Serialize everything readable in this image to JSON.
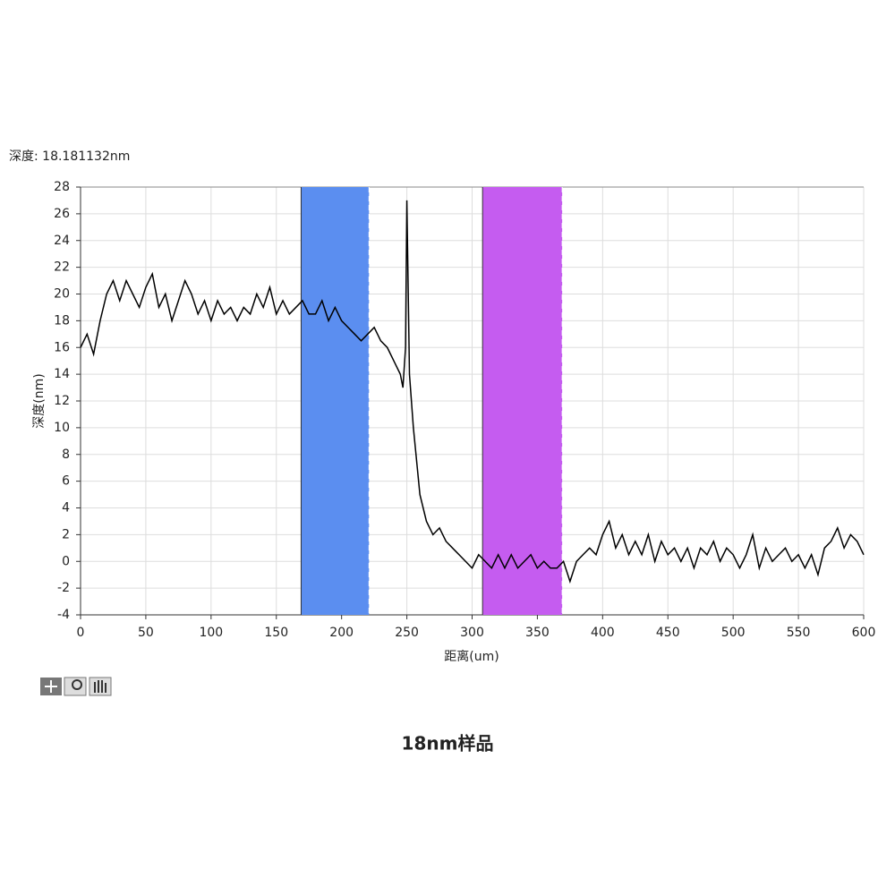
{
  "chart_data": {
    "type": "line",
    "readout": "深度: 18.181132nm",
    "caption": "18nm样品",
    "xlabel": "距离(um)",
    "ylabel": "深度(nm)",
    "xlim": [
      0,
      600
    ],
    "ylim": [
      -4,
      28
    ],
    "xticks": [
      0,
      50,
      100,
      150,
      200,
      250,
      300,
      350,
      400,
      450,
      500,
      550,
      600
    ],
    "yticks": [
      -4,
      -2,
      0,
      2,
      4,
      6,
      8,
      10,
      12,
      14,
      16,
      18,
      20,
      22,
      24,
      26,
      28
    ],
    "grid": true,
    "regions": [
      {
        "x": [
          169,
          221
        ],
        "color": "#5b8ef0"
      },
      {
        "x": [
          308,
          369
        ],
        "color": "#c55cf0"
      }
    ],
    "series": [
      {
        "color": "#000000",
        "x": [
          0,
          5,
          10,
          15,
          20,
          25,
          30,
          35,
          40,
          45,
          50,
          55,
          60,
          65,
          70,
          75,
          80,
          85,
          90,
          95,
          100,
          105,
          110,
          115,
          120,
          125,
          130,
          135,
          140,
          145,
          150,
          155,
          160,
          165,
          170,
          175,
          180,
          185,
          190,
          195,
          200,
          205,
          210,
          215,
          220,
          225,
          230,
          235,
          240,
          245,
          247,
          249,
          250,
          252,
          255,
          258,
          260,
          265,
          270,
          275,
          280,
          285,
          290,
          295,
          300,
          305,
          310,
          315,
          320,
          325,
          330,
          335,
          340,
          345,
          350,
          355,
          360,
          365,
          370,
          375,
          380,
          385,
          390,
          395,
          400,
          405,
          410,
          415,
          420,
          425,
          430,
          435,
          440,
          445,
          450,
          455,
          460,
          465,
          470,
          475,
          480,
          485,
          490,
          495,
          500,
          505,
          510,
          515,
          520,
          525,
          530,
          535,
          540,
          545,
          550,
          555,
          560,
          565,
          570,
          575,
          580,
          585,
          590,
          595,
          600
        ],
        "values": [
          16,
          17,
          15.5,
          18,
          20,
          21,
          19.5,
          21,
          20,
          19,
          20.5,
          21.5,
          19,
          20,
          18,
          19.5,
          21,
          20,
          18.5,
          19.5,
          18,
          19.5,
          18.5,
          19,
          18,
          19,
          18.5,
          20,
          19,
          20.5,
          18.5,
          19.5,
          18.5,
          19,
          19.5,
          18.5,
          18.5,
          19.5,
          18,
          19,
          18,
          17.5,
          17,
          16.5,
          17,
          17.5,
          16.5,
          16,
          15,
          14,
          13,
          16,
          27,
          14,
          10,
          7,
          5,
          3,
          2,
          2.5,
          1.5,
          1,
          0.5,
          0,
          -0.5,
          0.5,
          0,
          -0.5,
          0.5,
          -0.5,
          0.5,
          -0.5,
          0,
          0.5,
          -0.5,
          0,
          -0.5,
          -0.5,
          0,
          -1.5,
          0,
          0.5,
          1,
          0.5,
          2,
          3,
          1,
          2,
          0.5,
          1.5,
          0.5,
          2,
          0,
          1.5,
          0.5,
          1,
          0,
          1,
          -0.5,
          1,
          0.5,
          1.5,
          0,
          1,
          0.5,
          -0.5,
          0.5,
          2,
          -0.5,
          1,
          0,
          0.5,
          1,
          0,
          0.5,
          -0.5,
          0.5,
          -1,
          1,
          1.5,
          2.5,
          1,
          2,
          1.5,
          0.5
        ]
      }
    ]
  }
}
